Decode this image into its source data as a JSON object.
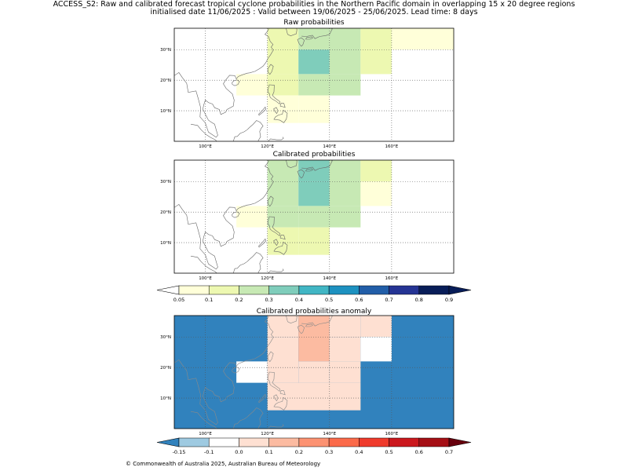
{
  "figure": {
    "title_line1": "ACCESS_S2: Raw and calibrated forecast tropical cyclone probabilities in the Northern Pacific domain in overlapping 15 x 20 degree regions",
    "title_line2": "initialised date 11/06/2025 :  Valid between 19/06/2025 - 25/06/2025. Lead time: 8 days",
    "footer": "© Commonwealth of Australia 2025, Australian Bureau of Meteorology"
  },
  "colors": {
    "prob_bins": [
      "#ffffd9",
      "#edf8b1",
      "#c7e9b4",
      "#7fcdbb",
      "#41b6c4",
      "#1d91c0",
      "#225ea8",
      "#253494",
      "#081d58"
    ],
    "prob_under": "#ffffff",
    "prob_over": "#081d58",
    "anom_bins": [
      "#3182bd",
      "#9ecae1",
      "#ffffff",
      "#fee0d2",
      "#fcbba1",
      "#fc9272",
      "#fb6a4a",
      "#ef3b2c",
      "#cb181d",
      "#a50f15"
    ],
    "anom_under": "#3182bd",
    "anom_over": "#67000d"
  },
  "chart_data": [
    {
      "type": "heatmap",
      "title": "Raw probabilities",
      "x_ticks": [
        "100°E",
        "120°E",
        "140°E",
        "160°E"
      ],
      "y_ticks": [
        "10°N",
        "20°N",
        "30°N"
      ],
      "xlim": [
        90,
        180
      ],
      "ylim": [
        0,
        37
      ],
      "cells": [
        {
          "lon": [
            110,
            120
          ],
          "lat": [
            15,
            22
          ],
          "value": 0.05
        },
        {
          "lon": [
            120,
            130
          ],
          "lat": [
            22,
            37
          ],
          "value": 0.15
        },
        {
          "lon": [
            120,
            130
          ],
          "lat": [
            15,
            22
          ],
          "value": 0.15
        },
        {
          "lon": [
            120,
            130
          ],
          "lat": [
            6,
            15
          ],
          "value": 0.05
        },
        {
          "lon": [
            130,
            140
          ],
          "lat": [
            30,
            37
          ],
          "value": 0.25
        },
        {
          "lon": [
            130,
            140
          ],
          "lat": [
            22,
            30
          ],
          "value": 0.35
        },
        {
          "lon": [
            130,
            140
          ],
          "lat": [
            15,
            22
          ],
          "value": 0.25
        },
        {
          "lon": [
            130,
            140
          ],
          "lat": [
            6,
            15
          ],
          "value": 0.05
        },
        {
          "lon": [
            140,
            150
          ],
          "lat": [
            22,
            37
          ],
          "value": 0.25
        },
        {
          "lon": [
            140,
            150
          ],
          "lat": [
            15,
            22
          ],
          "value": 0.25
        },
        {
          "lon": [
            150,
            160
          ],
          "lat": [
            22,
            37
          ],
          "value": 0.15
        },
        {
          "lon": [
            160,
            180
          ],
          "lat": [
            30,
            37
          ],
          "value": 0.05
        }
      ]
    },
    {
      "type": "heatmap",
      "title": "Calibrated probabilities",
      "x_ticks": [
        "100°E",
        "120°E",
        "140°E",
        "160°E"
      ],
      "y_ticks": [
        "10°N",
        "20°N",
        "30°N"
      ],
      "xlim": [
        90,
        180
      ],
      "ylim": [
        0,
        37
      ],
      "cells": [
        {
          "lon": [
            110,
            120
          ],
          "lat": [
            15,
            22
          ],
          "value": 0.05
        },
        {
          "lon": [
            120,
            130
          ],
          "lat": [
            22,
            37
          ],
          "value": 0.25
        },
        {
          "lon": [
            120,
            130
          ],
          "lat": [
            15,
            22
          ],
          "value": 0.25
        },
        {
          "lon": [
            120,
            130
          ],
          "lat": [
            6,
            15
          ],
          "value": 0.15
        },
        {
          "lon": [
            130,
            140
          ],
          "lat": [
            30,
            37
          ],
          "value": 0.35
        },
        {
          "lon": [
            130,
            140
          ],
          "lat": [
            22,
            30
          ],
          "value": 0.35
        },
        {
          "lon": [
            130,
            140
          ],
          "lat": [
            15,
            22
          ],
          "value": 0.25
        },
        {
          "lon": [
            130,
            140
          ],
          "lat": [
            6,
            15
          ],
          "value": 0.15
        },
        {
          "lon": [
            140,
            150
          ],
          "lat": [
            22,
            37
          ],
          "value": 0.25
        },
        {
          "lon": [
            140,
            150
          ],
          "lat": [
            15,
            22
          ],
          "value": 0.25
        },
        {
          "lon": [
            150,
            160
          ],
          "lat": [
            30,
            37
          ],
          "value": 0.15
        },
        {
          "lon": [
            150,
            160
          ],
          "lat": [
            22,
            30
          ],
          "value": 0.05
        }
      ]
    },
    {
      "type": "heatmap",
      "title": "Calibrated probabilities anomaly",
      "x_ticks": [
        "100°E",
        "120°E",
        "140°E",
        "160°E"
      ],
      "y_ticks": [
        "10°N",
        "20°N",
        "30°N"
      ],
      "xlim": [
        90,
        180
      ],
      "ylim": [
        0,
        37
      ],
      "background_value": -0.2,
      "cells": [
        {
          "lon": [
            110,
            120
          ],
          "lat": [
            15,
            22
          ],
          "value": -0.1
        },
        {
          "lon": [
            120,
            130
          ],
          "lat": [
            30,
            37
          ],
          "value": 0.0
        },
        {
          "lon": [
            120,
            130
          ],
          "lat": [
            15,
            30
          ],
          "value": 0.05
        },
        {
          "lon": [
            120,
            150
          ],
          "lat": [
            6,
            15
          ],
          "value": 0.0
        },
        {
          "lon": [
            130,
            140
          ],
          "lat": [
            22,
            37
          ],
          "value": 0.15
        },
        {
          "lon": [
            130,
            140
          ],
          "lat": [
            15,
            22
          ],
          "value": 0.05
        },
        {
          "lon": [
            140,
            150
          ],
          "lat": [
            22,
            30
          ],
          "value": 0.05
        },
        {
          "lon": [
            140,
            150
          ],
          "lat": [
            15,
            22
          ],
          "value": 0.0
        },
        {
          "lon": [
            140,
            150
          ],
          "lat": [
            30,
            37
          ],
          "value": 0.05
        },
        {
          "lon": [
            150,
            160
          ],
          "lat": [
            30,
            37
          ],
          "value": 0.0
        },
        {
          "lon": [
            150,
            160
          ],
          "lat": [
            22,
            30
          ],
          "value": -0.1
        }
      ]
    },
    {
      "type": "colorbar",
      "name": "probability",
      "ticks": [
        "0.05",
        "0.1",
        "0.2",
        "0.3",
        "0.4",
        "0.5",
        "0.6",
        "0.7",
        "0.8",
        "0.9"
      ]
    },
    {
      "type": "colorbar",
      "name": "anomaly",
      "ticks": [
        "-0.15",
        "-0.1",
        "0.0",
        "0.1",
        "0.2",
        "0.3",
        "0.4",
        "0.5",
        "0.6",
        "0.7"
      ]
    }
  ]
}
